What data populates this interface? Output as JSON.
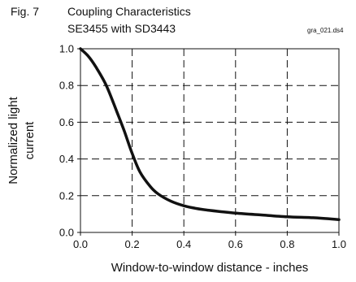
{
  "figure": {
    "fig_number": "Fig. 7",
    "title_line1": "Coupling Characteristics",
    "title_line2": "SE3455 with SD3443",
    "file_tag": "gra_021.ds4"
  },
  "chart_data": {
    "type": "line",
    "title": "Coupling Characteristics SE3455 with SD3443",
    "xlabel": "Window-to-window distance - inches",
    "ylabel": "Normalized light current",
    "xlim": [
      0.0,
      1.0
    ],
    "ylim": [
      0.0,
      1.0
    ],
    "x_ticks": [
      "0.0",
      "0.2",
      "0.4",
      "0.6",
      "0.8",
      "1.0"
    ],
    "y_ticks": [
      "0.0",
      "0.2",
      "0.4",
      "0.6",
      "0.8",
      "1.0"
    ],
    "grid": true,
    "grid_style": "dashed",
    "legend": "none",
    "line_color": "#111111",
    "series": [
      {
        "x": [
          0.0,
          0.03,
          0.06,
          0.1,
          0.14,
          0.17,
          0.2,
          0.23,
          0.27,
          0.3,
          0.35,
          0.4,
          0.45,
          0.5,
          0.6,
          0.7,
          0.8,
          0.9,
          1.0
        ],
        "y": [
          1.0,
          0.96,
          0.9,
          0.8,
          0.66,
          0.55,
          0.43,
          0.33,
          0.25,
          0.21,
          0.17,
          0.145,
          0.13,
          0.12,
          0.105,
          0.095,
          0.085,
          0.08,
          0.07
        ]
      }
    ]
  }
}
